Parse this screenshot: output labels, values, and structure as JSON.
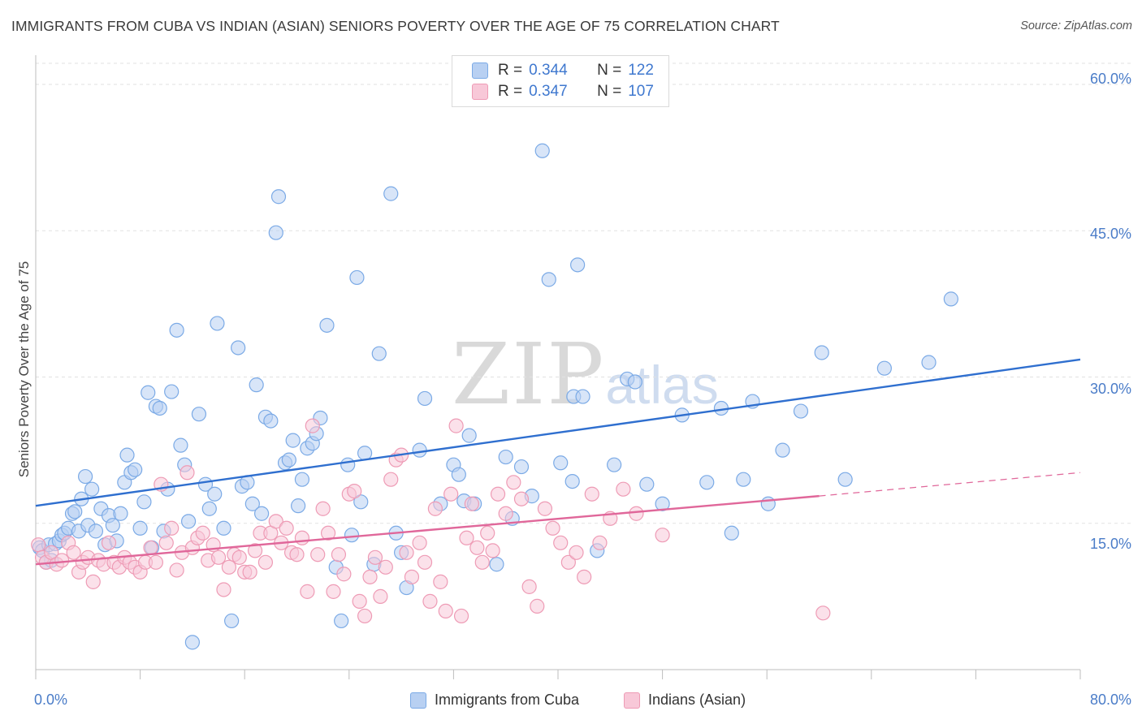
{
  "chart_data": {
    "type": "scatter",
    "title": "IMMIGRANTS FROM CUBA VS INDIAN (ASIAN) SENIORS POVERTY OVER THE AGE OF 75 CORRELATION CHART",
    "source": "Source: ZipAtlas.com",
    "xlabel": "",
    "ylabel": "Seniors Poverty Over the Age of 75",
    "xlim": [
      0,
      80
    ],
    "ylim": [
      0,
      63
    ],
    "x_tick_labels": [
      "0.0%",
      "80.0%"
    ],
    "y_ticks": [
      15,
      30,
      45,
      60
    ],
    "y_tick_labels": [
      "15.0%",
      "30.0%",
      "45.0%",
      "60.0%"
    ],
    "grid": true,
    "legend_position": "top-center",
    "watermark": {
      "main": "ZIP",
      "sub": "atlas"
    },
    "legend": [
      {
        "label": "R = ",
        "r": "0.344",
        "n_label": "N = ",
        "n": "122"
      },
      {
        "label": "R = ",
        "r": "0.347",
        "n_label": "N = ",
        "n": "107"
      }
    ],
    "series": [
      {
        "name": "Immigrants from Cuba",
        "color": "#7baae6",
        "fill": "#b8d0f2",
        "trend_color": "#2f6fcf",
        "trend": {
          "x": [
            0,
            80
          ],
          "y": [
            16.8,
            31.8
          ]
        },
        "points": [
          [
            0.3,
            12.5
          ],
          [
            0.5,
            12.2
          ],
          [
            0.8,
            11.0
          ],
          [
            1.0,
            12.8
          ],
          [
            1.2,
            11.2
          ],
          [
            1.5,
            12.9
          ],
          [
            1.8,
            13.2
          ],
          [
            2.0,
            13.8
          ],
          [
            2.2,
            14.0
          ],
          [
            2.5,
            14.5
          ],
          [
            2.8,
            16.0
          ],
          [
            3.0,
            16.2
          ],
          [
            3.3,
            14.2
          ],
          [
            3.5,
            17.5
          ],
          [
            3.8,
            19.8
          ],
          [
            4.0,
            14.8
          ],
          [
            4.3,
            18.5
          ],
          [
            4.6,
            14.2
          ],
          [
            5.0,
            16.5
          ],
          [
            5.3,
            12.8
          ],
          [
            5.6,
            15.8
          ],
          [
            5.9,
            14.8
          ],
          [
            6.2,
            13.2
          ],
          [
            6.5,
            16.0
          ],
          [
            6.8,
            19.2
          ],
          [
            7.0,
            22.0
          ],
          [
            7.3,
            20.2
          ],
          [
            7.6,
            20.5
          ],
          [
            8.0,
            14.5
          ],
          [
            8.3,
            17.2
          ],
          [
            8.6,
            28.4
          ],
          [
            8.9,
            12.5
          ],
          [
            9.2,
            27.0
          ],
          [
            9.5,
            26.8
          ],
          [
            9.8,
            14.2
          ],
          [
            10.1,
            18.5
          ],
          [
            10.4,
            28.5
          ],
          [
            10.8,
            34.8
          ],
          [
            11.1,
            23.0
          ],
          [
            11.4,
            21.0
          ],
          [
            11.7,
            15.2
          ],
          [
            12.0,
            2.8
          ],
          [
            12.5,
            26.2
          ],
          [
            13.0,
            19.0
          ],
          [
            13.3,
            16.5
          ],
          [
            13.7,
            18.0
          ],
          [
            13.9,
            35.5
          ],
          [
            14.4,
            14.5
          ],
          [
            15.0,
            5.0
          ],
          [
            15.5,
            33.0
          ],
          [
            15.8,
            18.8
          ],
          [
            16.2,
            19.2
          ],
          [
            16.6,
            17.0
          ],
          [
            16.9,
            29.2
          ],
          [
            17.3,
            16.0
          ],
          [
            17.6,
            25.9
          ],
          [
            18.0,
            25.5
          ],
          [
            18.4,
            44.8
          ],
          [
            18.6,
            48.5
          ],
          [
            19.1,
            21.2
          ],
          [
            19.4,
            21.5
          ],
          [
            19.7,
            23.5
          ],
          [
            20.1,
            16.8
          ],
          [
            20.4,
            19.5
          ],
          [
            20.8,
            22.7
          ],
          [
            21.2,
            23.2
          ],
          [
            21.5,
            24.2
          ],
          [
            21.8,
            25.8
          ],
          [
            22.3,
            35.3
          ],
          [
            23.0,
            10.5
          ],
          [
            23.4,
            5.0
          ],
          [
            23.9,
            21.0
          ],
          [
            24.2,
            13.8
          ],
          [
            24.6,
            40.2
          ],
          [
            24.9,
            17.2
          ],
          [
            25.2,
            22.2
          ],
          [
            25.9,
            10.8
          ],
          [
            26.3,
            32.4
          ],
          [
            27.2,
            48.8
          ],
          [
            27.6,
            14.0
          ],
          [
            28.0,
            12.0
          ],
          [
            28.4,
            8.4
          ],
          [
            29.4,
            22.5
          ],
          [
            29.8,
            27.8
          ],
          [
            31.0,
            17.0
          ],
          [
            32.0,
            21.0
          ],
          [
            32.4,
            20.0
          ],
          [
            32.8,
            17.3
          ],
          [
            33.2,
            24.0
          ],
          [
            33.6,
            17.0
          ],
          [
            35.3,
            10.8
          ],
          [
            36.0,
            21.8
          ],
          [
            36.5,
            15.5
          ],
          [
            37.2,
            20.8
          ],
          [
            38.0,
            17.8
          ],
          [
            38.8,
            53.2
          ],
          [
            39.3,
            40.0
          ],
          [
            40.2,
            21.2
          ],
          [
            41.2,
            28.0
          ],
          [
            41.5,
            41.5
          ],
          [
            41.1,
            19.3
          ],
          [
            41.9,
            28.0
          ],
          [
            43.0,
            12.2
          ],
          [
            44.3,
            21.0
          ],
          [
            45.3,
            29.8
          ],
          [
            45.9,
            29.5
          ],
          [
            46.8,
            19.0
          ],
          [
            48.0,
            17.0
          ],
          [
            49.5,
            26.1
          ],
          [
            51.4,
            19.2
          ],
          [
            52.5,
            26.8
          ],
          [
            53.3,
            14.0
          ],
          [
            54.2,
            19.5
          ],
          [
            54.9,
            27.5
          ],
          [
            56.1,
            17.0
          ],
          [
            57.2,
            22.5
          ],
          [
            58.6,
            26.5
          ],
          [
            60.2,
            32.5
          ],
          [
            62.0,
            19.5
          ],
          [
            65.0,
            30.9
          ],
          [
            68.4,
            31.5
          ],
          [
            70.1,
            38.0
          ]
        ]
      },
      {
        "name": "Indians (Asian)",
        "color": "#ee9bb5",
        "fill": "#f8c8d8",
        "trend_color": "#e0679a",
        "trend": {
          "x": [
            0,
            60
          ],
          "y": [
            10.8,
            17.8
          ]
        },
        "trend_dashed": {
          "x": [
            60,
            80
          ],
          "y": [
            17.8,
            20.2
          ]
        },
        "points": [
          [
            0.2,
            12.8
          ],
          [
            0.5,
            11.5
          ],
          [
            0.8,
            11.0
          ],
          [
            1.2,
            12.0
          ],
          [
            1.6,
            10.8
          ],
          [
            2.0,
            11.2
          ],
          [
            2.5,
            13.0
          ],
          [
            2.9,
            12.0
          ],
          [
            3.3,
            10.0
          ],
          [
            3.6,
            11.0
          ],
          [
            4.0,
            11.5
          ],
          [
            4.4,
            9.0
          ],
          [
            4.8,
            11.2
          ],
          [
            5.2,
            10.8
          ],
          [
            5.6,
            13.0
          ],
          [
            6.0,
            11.0
          ],
          [
            6.4,
            10.5
          ],
          [
            6.8,
            11.5
          ],
          [
            7.2,
            11.0
          ],
          [
            7.6,
            10.5
          ],
          [
            8.0,
            10.0
          ],
          [
            8.4,
            11.0
          ],
          [
            8.8,
            12.5
          ],
          [
            9.2,
            11.0
          ],
          [
            9.6,
            19.0
          ],
          [
            10.0,
            13.0
          ],
          [
            10.4,
            14.5
          ],
          [
            10.8,
            10.2
          ],
          [
            11.2,
            12.0
          ],
          [
            11.6,
            20.2
          ],
          [
            12.0,
            12.5
          ],
          [
            12.4,
            13.5
          ],
          [
            12.8,
            14.0
          ],
          [
            13.2,
            11.2
          ],
          [
            13.6,
            12.8
          ],
          [
            14.0,
            11.5
          ],
          [
            14.4,
            8.2
          ],
          [
            14.8,
            10.5
          ],
          [
            15.2,
            11.8
          ],
          [
            15.6,
            11.5
          ],
          [
            16.0,
            10.0
          ],
          [
            16.4,
            10.0
          ],
          [
            16.8,
            12.2
          ],
          [
            17.2,
            14.0
          ],
          [
            17.6,
            11.0
          ],
          [
            18.0,
            14.0
          ],
          [
            18.4,
            15.2
          ],
          [
            18.8,
            13.0
          ],
          [
            19.2,
            14.5
          ],
          [
            19.6,
            12.0
          ],
          [
            20.0,
            11.8
          ],
          [
            20.4,
            13.5
          ],
          [
            20.8,
            8.0
          ],
          [
            21.2,
            25.0
          ],
          [
            21.6,
            11.8
          ],
          [
            22.0,
            16.5
          ],
          [
            22.4,
            14.0
          ],
          [
            22.8,
            8.0
          ],
          [
            23.2,
            11.8
          ],
          [
            23.6,
            9.8
          ],
          [
            24.0,
            18.0
          ],
          [
            24.4,
            18.3
          ],
          [
            24.8,
            7.0
          ],
          [
            25.2,
            5.5
          ],
          [
            25.6,
            9.5
          ],
          [
            26.0,
            11.5
          ],
          [
            26.4,
            7.5
          ],
          [
            26.8,
            10.5
          ],
          [
            27.2,
            19.5
          ],
          [
            27.6,
            21.5
          ],
          [
            28.0,
            22.0
          ],
          [
            28.4,
            12.0
          ],
          [
            28.8,
            9.5
          ],
          [
            29.4,
            13.0
          ],
          [
            29.8,
            11.0
          ],
          [
            30.2,
            7.0
          ],
          [
            30.6,
            16.5
          ],
          [
            31.0,
            9.0
          ],
          [
            31.4,
            6.0
          ],
          [
            31.8,
            18.0
          ],
          [
            32.2,
            25.0
          ],
          [
            32.6,
            5.5
          ],
          [
            33.0,
            13.5
          ],
          [
            33.4,
            17.0
          ],
          [
            33.8,
            12.5
          ],
          [
            34.2,
            11.0
          ],
          [
            34.6,
            14.0
          ],
          [
            35.0,
            12.2
          ],
          [
            35.4,
            18.0
          ],
          [
            36.0,
            16.0
          ],
          [
            36.6,
            19.2
          ],
          [
            37.2,
            17.5
          ],
          [
            37.8,
            8.5
          ],
          [
            38.4,
            6.5
          ],
          [
            39.0,
            16.5
          ],
          [
            39.6,
            14.5
          ],
          [
            40.2,
            13.0
          ],
          [
            40.8,
            11.0
          ],
          [
            41.4,
            12.0
          ],
          [
            42.0,
            9.5
          ],
          [
            42.6,
            18.0
          ],
          [
            43.2,
            13.0
          ],
          [
            44.0,
            15.5
          ],
          [
            45.0,
            18.5
          ],
          [
            46.0,
            16.0
          ],
          [
            48.0,
            13.8
          ],
          [
            60.3,
            5.8
          ]
        ]
      }
    ]
  }
}
